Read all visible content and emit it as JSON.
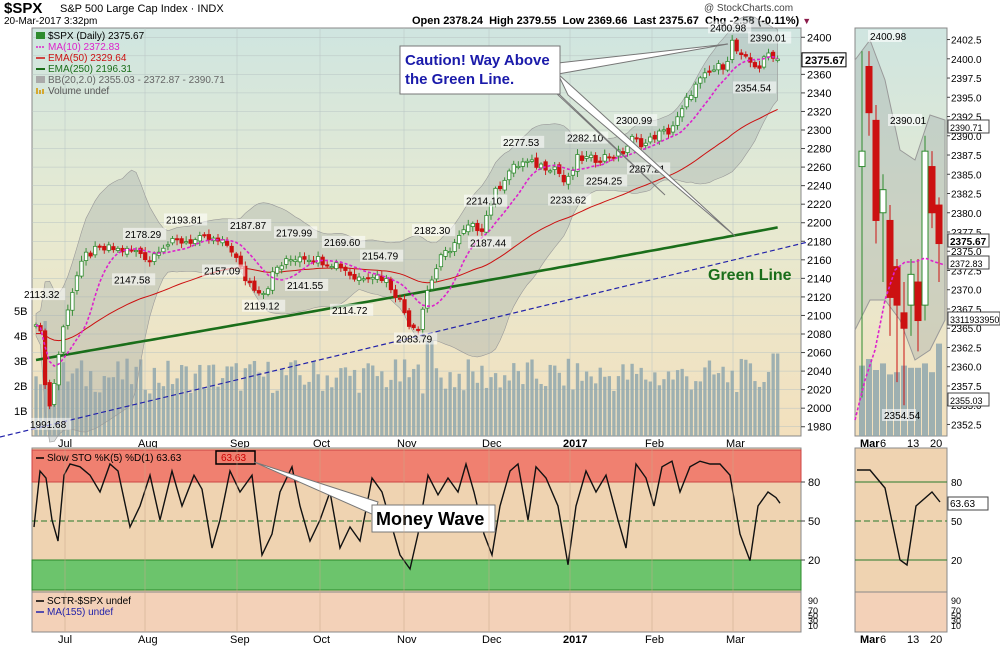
{
  "header": {
    "symbol": "$SPX",
    "name": "S&P 500 Large Cap Index",
    "exchange": "INDX",
    "date": "20-Mar-2017 3:32pm",
    "open_label": "Open",
    "open": "2378.24",
    "high_label": "High",
    "high": "2379.55",
    "low_label": "Low",
    "low": "2369.66",
    "last_label": "Last",
    "last": "2375.67",
    "chg_label": "Chg",
    "chg": "-2.58 (-0.11%)",
    "credit": "@ StockCharts.com"
  },
  "legend": {
    "main": "$SPX (Daily) 2375.67",
    "ma10": "MA(10) 2372.83",
    "ema50": "EMA(50) 2329.64",
    "ema250": "EMA(250) 2196.31",
    "bb": "BB(20,2.0) 2355.03 - 2372.87 - 2390.71",
    "volume": "Volume undef",
    "sto": "Slow STO %K(5) %D(1) 63.63",
    "sto_box": "63.63",
    "sctr": "SCTR-$SPX undef",
    "ma155": "MA(155) undef"
  },
  "annotations": {
    "caution": [
      "Caution! Way Above",
      "the Green Line."
    ],
    "green_line": "Green Line",
    "money_wave": "Money Wave"
  },
  "colors": {
    "up": "#2e8b2e",
    "down": "#cc1111",
    "ma10": "#dd22cc",
    "ema50": "#cc1111",
    "ema250": "#1a6e1a",
    "bb": "#a8a8a8",
    "volume": "#8fa7ae",
    "trend": "#2222aa",
    "caution_text": "#1a1aaa",
    "green_text": "#1a6e1a"
  },
  "chart_data": {
    "type": "candlestick",
    "y_ticks": [
      1980,
      2000,
      2020,
      2040,
      2060,
      2080,
      2100,
      2120,
      2140,
      2160,
      2180,
      2200,
      2220,
      2240,
      2260,
      2280,
      2300,
      2320,
      2340,
      2360,
      2380,
      2400
    ],
    "y_range": [
      1970,
      2410
    ],
    "volume_ticks": [
      "1B",
      "2B",
      "3B",
      "4B",
      "5B"
    ],
    "x_ticks": [
      "Jul",
      "Aug",
      "Sep",
      "Oct",
      "Nov",
      "Dec",
      "2017",
      "Feb",
      "Mar"
    ],
    "price_labels": [
      "2113.32",
      "1991.68",
      "2178.29",
      "2147.58",
      "2193.81",
      "2157.09",
      "2187.87",
      "2119.12",
      "2179.99",
      "2141.55",
      "2169.60",
      "2114.72",
      "2154.79",
      "2083.79",
      "2182.30",
      "2187.44",
      "2214.10",
      "2277.53",
      "2233.62",
      "2282.10",
      "2254.25",
      "2300.99",
      "2267.21",
      "2400.98",
      "2390.01",
      "2354.54"
    ],
    "last_price": 2375.67,
    "ma10_last": 2372.83,
    "zoom_y_ticks": [
      "2352.5",
      "2355.0",
      "2357.5",
      "2360.0",
      "2362.5",
      "2365.0",
      "2367.5",
      "2370.0",
      "2372.5",
      "2375.0",
      "2377.5",
      "2380.0",
      "2382.5",
      "2385.0",
      "2387.5",
      "2390.0",
      "2392.5",
      "2395.0",
      "2397.5",
      "2400.0",
      "2402.5"
    ],
    "zoom_x_ticks": [
      "Mar",
      "6",
      "13",
      "20"
    ],
    "zoom_labels": [
      "2400.98",
      "2390.01",
      "2354.54",
      "2390.71",
      "2375.67",
      "2372.83",
      "2355.03",
      "3311933950"
    ],
    "sto_ticks": [
      "80",
      "50",
      "20"
    ],
    "sctr_ticks": [
      "90",
      "70",
      "50",
      "30",
      "10"
    ],
    "sto_last": 63.63
  }
}
